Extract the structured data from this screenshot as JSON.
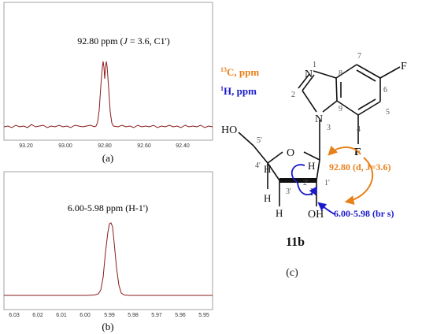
{
  "colors": {
    "spectrum_line": "#8b1a1a",
    "frame": "#a0a0a0",
    "carbon": "#e8801a",
    "proton": "#1a1acc",
    "bond": "#111111",
    "label_gray": "#555555"
  },
  "spectrum_a": {
    "title_prefix": "92.80 ppm (",
    "title_j": "J",
    "title_suffix": " = 3.6, C1')",
    "ticks": [
      "93.20",
      "93.00",
      "92.80",
      "92.60",
      "92.40"
    ],
    "caption": "(a)"
  },
  "spectrum_b": {
    "title": "6.00-5.98 ppm (H-1')",
    "ticks": [
      "6.03",
      "6.02",
      "6.01",
      "6.00",
      "5.99",
      "5.98",
      "5.97",
      "5.96",
      "5.95"
    ],
    "caption": "(b)"
  },
  "legend": {
    "carbon_sup": "13",
    "carbon_text": "C, ppm",
    "proton_sup": "1",
    "proton_text": "H, ppm"
  },
  "molecule": {
    "atoms": {
      "N1": "N",
      "N3": "N",
      "F_top": "F",
      "F_bottom": "F",
      "O_ring": "O",
      "HO": "HO",
      "OH": "OH",
      "H_4p": "H",
      "H_3p_a": "H",
      "H_3p_b": "H",
      "H_1p": "H",
      "H_2p": "H"
    },
    "numbers": {
      "n1": "1",
      "n2": "2",
      "n3": "3",
      "n4": "4",
      "n5": "5",
      "n6": "6",
      "n7": "7",
      "n8": "8",
      "n9": "9",
      "p5": "5'",
      "p4": "4'",
      "p3": "3'",
      "p2": "2'",
      "p1": "1'"
    },
    "annotation_carbon": "92.80 (d, J=3.6)",
    "annotation_proton": "6.00-5.98 (br s)",
    "compound_label": "11b",
    "caption": "(c)"
  }
}
